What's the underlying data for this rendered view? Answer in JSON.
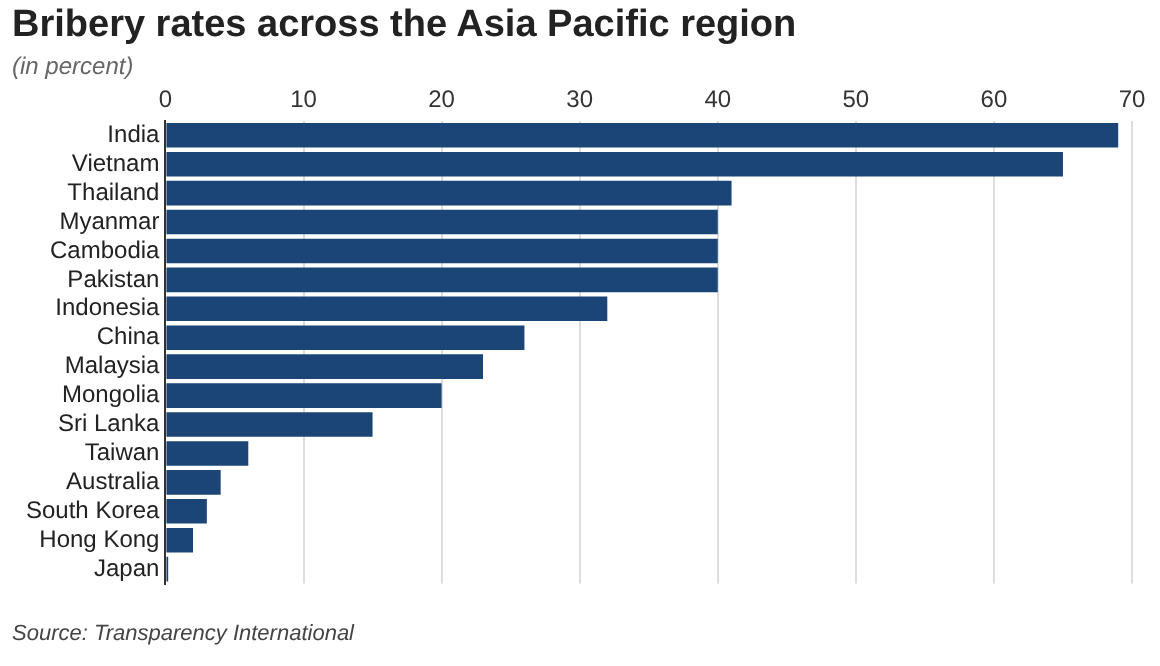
{
  "chart_data": {
    "type": "bar",
    "orientation": "horizontal",
    "title": "Bribery rates across the Asia Pacific region",
    "subtitle": "(in percent)",
    "categories": [
      "India",
      "Vietnam",
      "Thailand",
      "Myanmar",
      "Cambodia",
      "Pakistan",
      "Indonesia",
      "China",
      "Malaysia",
      "Mongolia",
      "Sri Lanka",
      "Taiwan",
      "Australia",
      "South Korea",
      "Hong Kong",
      "Japan"
    ],
    "values": [
      69,
      65,
      41,
      40,
      40,
      40,
      32,
      26,
      23,
      20,
      15,
      6,
      4,
      3,
      2,
      0.2
    ],
    "color": "#1b4477",
    "xlim": [
      0,
      70
    ],
    "xticks": [
      0,
      10,
      20,
      30,
      40,
      50,
      60,
      70
    ],
    "grid": "x",
    "legend": false,
    "annotations": [
      "Source: Transparency International"
    ]
  }
}
